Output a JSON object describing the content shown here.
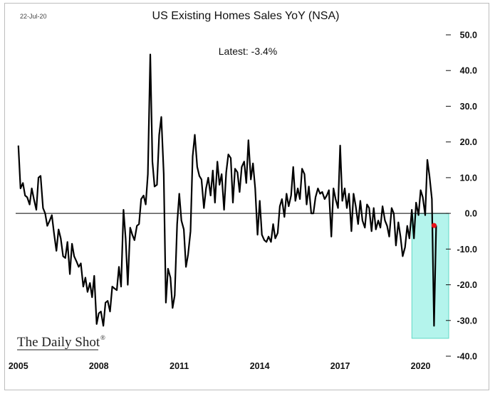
{
  "header": {
    "date": "22-Jul-20",
    "title": "US Existing Homes Sales YoY (NSA)"
  },
  "annotation": {
    "latest": "Latest:  -3.4%"
  },
  "branding": {
    "name": "The Daily Shot",
    "mark": "®"
  },
  "colors": {
    "line": "#000000",
    "latest_point": "#e8141b",
    "highlight_fill": "#b4f4ec",
    "highlight_stroke": "#5fd8c6",
    "zero_line": "#000000"
  },
  "chart_data": {
    "type": "line",
    "title": "US Existing Homes Sales YoY (NSA)",
    "xlabel": "",
    "ylabel": "",
    "x_ticks": [
      2005,
      2008,
      2011,
      2014,
      2017,
      2020
    ],
    "y_ticks": [
      50,
      40,
      30,
      20,
      10,
      0,
      -10,
      -20,
      -30,
      -40
    ],
    "y_tick_labels": [
      "50.0",
      "40.0",
      "30.0",
      "20.0",
      "10.0",
      "0.0",
      "-10.0",
      "-20.0",
      "-30.0",
      "-40.0"
    ],
    "xlim": [
      2004.9,
      2021.1
    ],
    "ylim": [
      -40,
      50
    ],
    "y_axis_side": "right",
    "grid": false,
    "highlight_region": {
      "x": [
        2019.7,
        2021.1
      ],
      "y": [
        -35,
        0
      ]
    },
    "latest_point": {
      "x": 2020.5,
      "y": -3.4
    },
    "series": [
      {
        "points": [
          [
            2005.0,
            19
          ],
          [
            2005.08,
            7
          ],
          [
            2005.17,
            8.5
          ],
          [
            2005.25,
            5
          ],
          [
            2005.33,
            4.5
          ],
          [
            2005.42,
            2.5
          ],
          [
            2005.5,
            7
          ],
          [
            2005.58,
            4
          ],
          [
            2005.67,
            1
          ],
          [
            2005.75,
            10
          ],
          [
            2005.83,
            10.5
          ],
          [
            2005.92,
            1.5
          ],
          [
            2006.0,
            0
          ],
          [
            2006.08,
            -3.5
          ],
          [
            2006.17,
            -2
          ],
          [
            2006.25,
            -0.5
          ],
          [
            2006.33,
            -5.5
          ],
          [
            2006.42,
            -10.5
          ],
          [
            2006.5,
            -4.5
          ],
          [
            2006.58,
            -7
          ],
          [
            2006.67,
            -12
          ],
          [
            2006.75,
            -12.5
          ],
          [
            2006.83,
            -8
          ],
          [
            2006.92,
            -17
          ],
          [
            2007.0,
            -8.5
          ],
          [
            2007.08,
            -12
          ],
          [
            2007.17,
            -13.5
          ],
          [
            2007.25,
            -15
          ],
          [
            2007.33,
            -14
          ],
          [
            2007.42,
            -20.5
          ],
          [
            2007.5,
            -18
          ],
          [
            2007.58,
            -22
          ],
          [
            2007.67,
            -19.5
          ],
          [
            2007.75,
            -23.5
          ],
          [
            2007.83,
            -17.5
          ],
          [
            2007.92,
            -31
          ],
          [
            2008.0,
            -28
          ],
          [
            2008.08,
            -27.5
          ],
          [
            2008.17,
            -31.5
          ],
          [
            2008.25,
            -25
          ],
          [
            2008.33,
            -24.5
          ],
          [
            2008.42,
            -27.5
          ],
          [
            2008.5,
            -20.5
          ],
          [
            2008.58,
            -21
          ],
          [
            2008.67,
            -21.5
          ],
          [
            2008.75,
            -15
          ],
          [
            2008.83,
            -20.5
          ],
          [
            2008.92,
            1
          ],
          [
            2009.0,
            -7
          ],
          [
            2009.08,
            -20
          ],
          [
            2009.17,
            -4
          ],
          [
            2009.25,
            -6
          ],
          [
            2009.33,
            -7.5
          ],
          [
            2009.42,
            -3.5
          ],
          [
            2009.5,
            -3
          ],
          [
            2009.58,
            4
          ],
          [
            2009.67,
            5
          ],
          [
            2009.75,
            2.5
          ],
          [
            2009.83,
            11
          ],
          [
            2009.92,
            44.5
          ],
          [
            2010.0,
            14.5
          ],
          [
            2010.08,
            7.5
          ],
          [
            2010.17,
            8
          ],
          [
            2010.25,
            22
          ],
          [
            2010.33,
            27
          ],
          [
            2010.42,
            11
          ],
          [
            2010.5,
            -25
          ],
          [
            2010.58,
            -15.5
          ],
          [
            2010.67,
            -18
          ],
          [
            2010.75,
            -26.5
          ],
          [
            2010.83,
            -23
          ],
          [
            2010.92,
            -3
          ],
          [
            2011.0,
            5.5
          ],
          [
            2011.08,
            -2
          ],
          [
            2011.17,
            -4.5
          ],
          [
            2011.25,
            -15
          ],
          [
            2011.33,
            -11.5
          ],
          [
            2011.42,
            -5
          ],
          [
            2011.5,
            16
          ],
          [
            2011.58,
            22
          ],
          [
            2011.67,
            13
          ],
          [
            2011.75,
            10.5
          ],
          [
            2011.83,
            9.5
          ],
          [
            2011.92,
            1.5
          ],
          [
            2012.0,
            7
          ],
          [
            2012.08,
            10
          ],
          [
            2012.17,
            5
          ],
          [
            2012.25,
            12
          ],
          [
            2012.33,
            3
          ],
          [
            2012.42,
            14.5
          ],
          [
            2012.5,
            8
          ],
          [
            2012.58,
            11
          ],
          [
            2012.67,
            1
          ],
          [
            2012.75,
            11.5
          ],
          [
            2012.83,
            16.5
          ],
          [
            2012.92,
            15.5
          ],
          [
            2013.0,
            3
          ],
          [
            2013.08,
            12.5
          ],
          [
            2013.17,
            11.5
          ],
          [
            2013.25,
            6
          ],
          [
            2013.33,
            13
          ],
          [
            2013.42,
            14.5
          ],
          [
            2013.5,
            8.5
          ],
          [
            2013.58,
            20.5
          ],
          [
            2013.67,
            9.5
          ],
          [
            2013.75,
            14
          ],
          [
            2013.83,
            7
          ],
          [
            2013.92,
            -6
          ],
          [
            2014.0,
            3.5
          ],
          [
            2014.08,
            -6
          ],
          [
            2014.17,
            -7.5
          ],
          [
            2014.25,
            -8
          ],
          [
            2014.33,
            -6.5
          ],
          [
            2014.42,
            -8
          ],
          [
            2014.5,
            -3
          ],
          [
            2014.58,
            -7
          ],
          [
            2014.67,
            -5.5
          ],
          [
            2014.75,
            2
          ],
          [
            2014.83,
            4
          ],
          [
            2014.92,
            -1
          ],
          [
            2015.0,
            5.5
          ],
          [
            2015.08,
            2
          ],
          [
            2015.17,
            5
          ],
          [
            2015.25,
            13
          ],
          [
            2015.33,
            3.5
          ],
          [
            2015.42,
            7
          ],
          [
            2015.5,
            4
          ],
          [
            2015.58,
            12.5
          ],
          [
            2015.67,
            11
          ],
          [
            2015.75,
            2.5
          ],
          [
            2015.83,
            7.5
          ],
          [
            2015.92,
            0
          ],
          [
            2016.0,
            0
          ],
          [
            2016.08,
            4.5
          ],
          [
            2016.17,
            7
          ],
          [
            2016.25,
            5.5
          ],
          [
            2016.33,
            6
          ],
          [
            2016.42,
            4
          ],
          [
            2016.5,
            5
          ],
          [
            2016.58,
            6.5
          ],
          [
            2016.67,
            -6.5
          ],
          [
            2016.75,
            7
          ],
          [
            2016.83,
            4
          ],
          [
            2016.92,
            1.5
          ],
          [
            2017.0,
            19
          ],
          [
            2017.08,
            3.5
          ],
          [
            2017.17,
            7
          ],
          [
            2017.25,
            1.5
          ],
          [
            2017.33,
            5.5
          ],
          [
            2017.42,
            -5
          ],
          [
            2017.5,
            5.5
          ],
          [
            2017.58,
            2
          ],
          [
            2017.67,
            -3
          ],
          [
            2017.75,
            3.5
          ],
          [
            2017.83,
            -2
          ],
          [
            2017.92,
            -4
          ],
          [
            2018.0,
            2.5
          ],
          [
            2018.08,
            1.5
          ],
          [
            2018.17,
            -5
          ],
          [
            2018.25,
            1.5
          ],
          [
            2018.33,
            -4.5
          ],
          [
            2018.42,
            -2
          ],
          [
            2018.5,
            -4
          ],
          [
            2018.58,
            2
          ],
          [
            2018.67,
            -2
          ],
          [
            2018.75,
            -3.5
          ],
          [
            2018.83,
            -6.5
          ],
          [
            2018.92,
            1.5
          ],
          [
            2019.0,
            0
          ],
          [
            2019.08,
            -9
          ],
          [
            2019.17,
            -2.5
          ],
          [
            2019.25,
            -6.5
          ],
          [
            2019.33,
            -12
          ],
          [
            2019.42,
            -9.5
          ],
          [
            2019.5,
            -3.5
          ],
          [
            2019.58,
            -7
          ],
          [
            2019.67,
            1
          ],
          [
            2019.75,
            -7
          ],
          [
            2019.83,
            3
          ],
          [
            2019.92,
            -0.5
          ],
          [
            2020.0,
            6.5
          ],
          [
            2020.08,
            4.5
          ],
          [
            2020.17,
            -0.5
          ],
          [
            2020.25,
            15
          ],
          [
            2020.33,
            10.5
          ],
          [
            2020.42,
            4
          ],
          [
            2020.5,
            -31.5
          ],
          [
            2020.58,
            -3.4
          ]
        ]
      }
    ]
  }
}
